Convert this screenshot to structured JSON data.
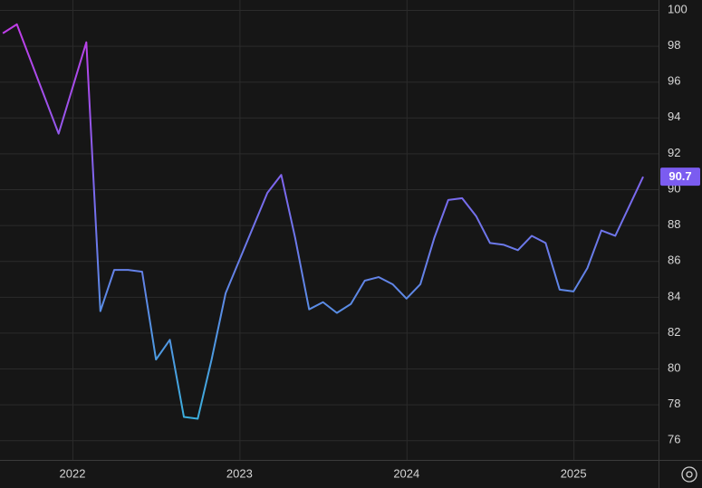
{
  "chart_data": {
    "type": "line",
    "x": [
      2021.583,
      2021.667,
      2021.917,
      2022.083,
      2022.167,
      2022.25,
      2022.333,
      2022.417,
      2022.5,
      2022.583,
      2022.667,
      2022.75,
      2022.833,
      2022.917,
      2023.167,
      2023.25,
      2023.333,
      2023.417,
      2023.5,
      2023.583,
      2023.667,
      2023.75,
      2023.833,
      2023.917,
      2024,
      2024.083,
      2024.167,
      2024.25,
      2024.333,
      2024.417,
      2024.5,
      2024.583,
      2024.667,
      2024.75,
      2024.833,
      2024.917,
      2025,
      2025.083,
      2025.167,
      2025.25,
      2025.417
    ],
    "series": [
      {
        "color": "#7b68ee",
        "gradient": [
          "#c33be8",
          "#7b68ee",
          "#39b0dc"
        ],
        "values": [
          98.7,
          99.2,
          93.1,
          98.2,
          83.2,
          85.5,
          85.5,
          85.4,
          80.5,
          81.6,
          77.3,
          77.2,
          80.5,
          84.2,
          89.8,
          90.8,
          87.3,
          83.3,
          83.7,
          83.1,
          83.6,
          84.9,
          85.1,
          84.7,
          83.9,
          84.7,
          87.3,
          89.4,
          89.5,
          88.5,
          87.0,
          86.9,
          86.6,
          87.4,
          87.0,
          84.4,
          84.3,
          85.6,
          87.7,
          87.4,
          90.7
        ]
      }
    ],
    "xlim": [
      2021.566,
      2025.509
    ],
    "xticks": [
      2022,
      2023,
      2024,
      2025
    ],
    "ylim": [
      74.9,
      100.556
    ],
    "yticks": [
      76,
      78,
      80,
      82,
      84,
      86,
      88,
      90,
      92,
      94,
      96,
      98,
      100
    ],
    "grid": true,
    "last_value_color": "#7b5cf0"
  }
}
